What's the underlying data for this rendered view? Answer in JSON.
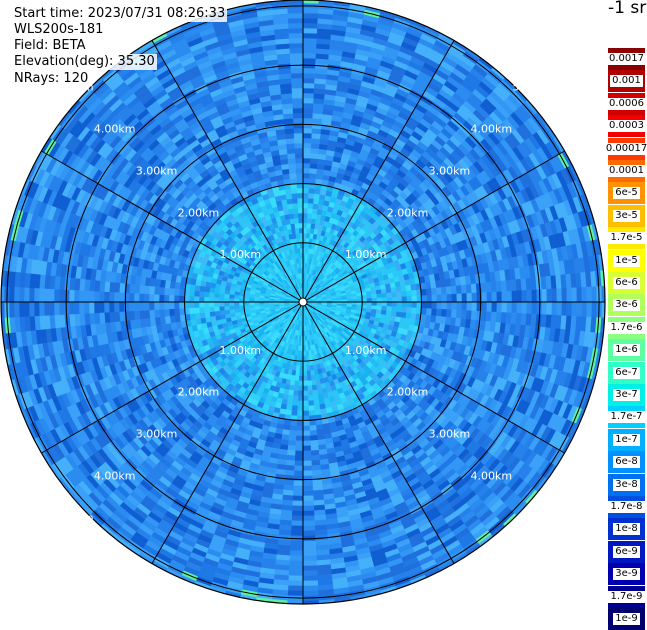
{
  "header": {
    "start_time": "Start time: 2023/07/31 08:26:33",
    "instrument": "WLS200s-181",
    "field": "Field: BETA",
    "elevation": "Elevation(deg): 35.30",
    "nrays": "NRays: 120"
  },
  "colorbar": {
    "unit": "-1 sr",
    "labels": [
      "0.0017",
      "0.001",
      "0.0006",
      "0.0003",
      "0.00017",
      "0.0001",
      "6e-5",
      "3e-5",
      "1.7e-5",
      "1e-5",
      "6e-6",
      "3e-6",
      "1.7e-6",
      "1e-6",
      "6e-7",
      "3e-7",
      "1.7e-7",
      "1e-7",
      "6e-8",
      "3e-8",
      "1.7e-8",
      "1e-8",
      "6e-9",
      "3e-9",
      "1.7e-9",
      "1e-9"
    ],
    "colors": [
      "#8b0000",
      "#b00000",
      "#d00000",
      "#f00000",
      "#ff3a00",
      "#ff6a00",
      "#ff9200",
      "#ffbf00",
      "#ffe800",
      "#ffff00",
      "#d8ff32",
      "#b0ff5c",
      "#8aff80",
      "#5effa0",
      "#30ffc8",
      "#00f0e8",
      "#00d0ff",
      "#00b0ff",
      "#0090ff",
      "#0070f0",
      "#0050e0",
      "#0030d0",
      "#0018c0",
      "#0000b0",
      "#000090",
      "#000070"
    ]
  },
  "chart_data": {
    "type": "heatmap",
    "projection": "polar (PPI)",
    "nrays": 120,
    "range_rings_km": [
      "1.00km",
      "2.00km",
      "3.00km",
      "4.00km",
      "5.00km"
    ],
    "max_range_km": 5.1,
    "radial_spokes_deg": [
      0,
      30,
      60,
      90,
      120,
      150,
      180,
      210,
      240,
      270,
      300,
      330
    ],
    "field": "BETA",
    "value_range": [
      "1e-9",
      "0.0017"
    ],
    "dominant_values": {
      "inner_0_2km": "1.7e-7",
      "outer_2_5km": "6e-8"
    }
  }
}
